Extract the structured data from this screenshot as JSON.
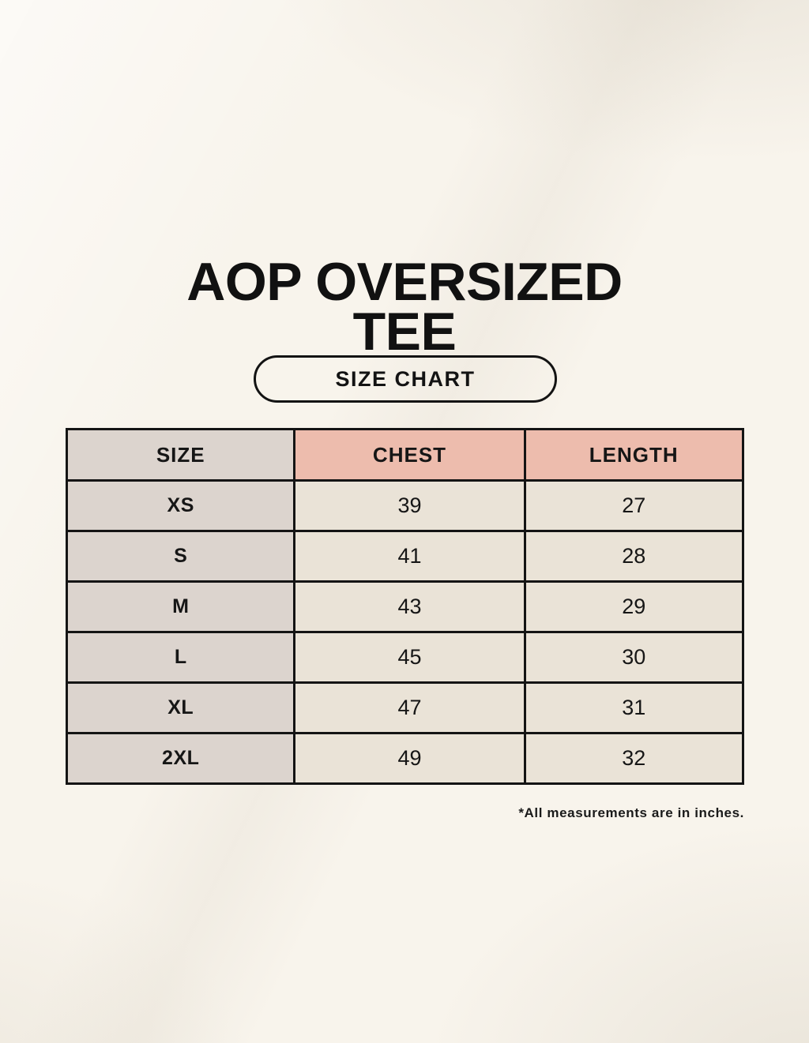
{
  "header": {
    "title_line1": "AOP OVERSIZED",
    "title_line2": "TEE",
    "size_chart_button_label": "SIZE CHART"
  },
  "chart_data": {
    "type": "table",
    "title": "AOP OVERSIZED TEE",
    "subtitle": "SIZE CHART",
    "columns": [
      "SIZE",
      "CHEST",
      "LENGTH"
    ],
    "rows": [
      {
        "size": "XS",
        "chest": 39,
        "length": 27
      },
      {
        "size": "S",
        "chest": 41,
        "length": 28
      },
      {
        "size": "M",
        "chest": 43,
        "length": 29
      },
      {
        "size": "L",
        "chest": 45,
        "length": 30
      },
      {
        "size": "XL",
        "chest": 47,
        "length": 31
      },
      {
        "size": "2XL",
        "chest": 49,
        "length": 32
      }
    ],
    "units": "inches"
  },
  "footnote": "*All measurements are in inches.",
  "colors": {
    "background": "#f8f4ec",
    "header_pink": "#edbcad",
    "cell_gray": "#dcd4ce",
    "cell_cream": "#eae3d7",
    "border_black": "#141414",
    "text_black": "#161616"
  }
}
